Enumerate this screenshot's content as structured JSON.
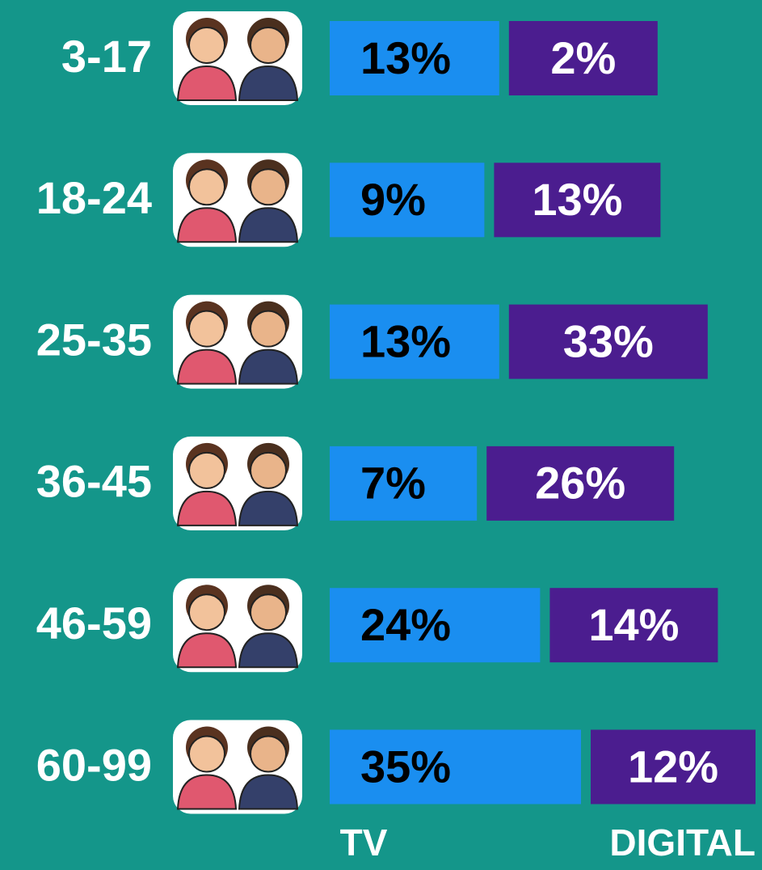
{
  "chart_data": {
    "type": "bar",
    "categories": [
      "3-17",
      "18-24",
      "25-35",
      "36-45",
      "46-59",
      "60-99"
    ],
    "series": [
      {
        "name": "TV",
        "color": "#1a8ef0",
        "values": [
          13,
          9,
          13,
          7,
          24,
          35
        ],
        "value_labels": [
          "13%",
          "9%",
          "13%",
          "7%",
          "24%",
          "35%"
        ]
      },
      {
        "name": "DIGITAL",
        "color": "#4b1d8f",
        "values": [
          2,
          13,
          33,
          26,
          14,
          12
        ],
        "value_labels": [
          "2%",
          "13%",
          "33%",
          "26%",
          "14%",
          "12%"
        ]
      }
    ]
  }
}
